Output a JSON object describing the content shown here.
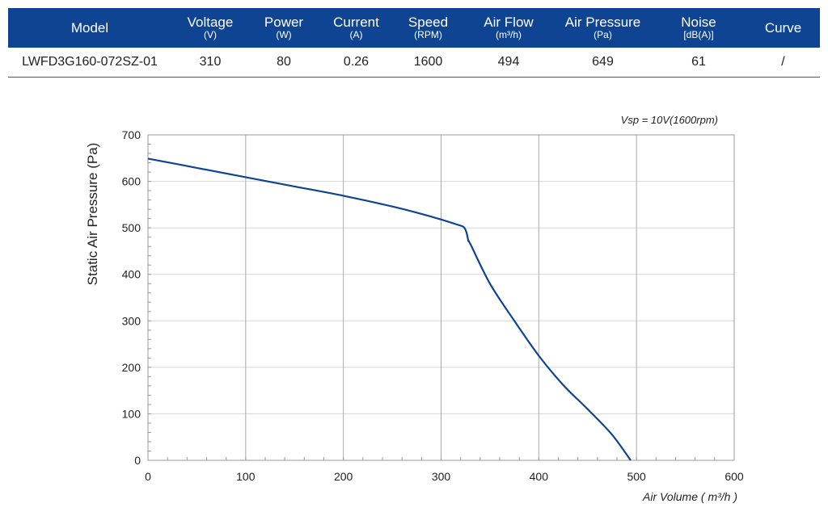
{
  "table": {
    "columns": [
      {
        "label": "Model",
        "unit": ""
      },
      {
        "label": "Voltage",
        "unit": "(V)"
      },
      {
        "label": "Power",
        "unit": "(W)"
      },
      {
        "label": "Current",
        "unit": "(A)"
      },
      {
        "label": "Speed",
        "unit": "(RPM)"
      },
      {
        "label": "Air Flow",
        "unit": "(m³/h)"
      },
      {
        "label": "Air Pressure",
        "unit": "(Pa)"
      },
      {
        "label": "Noise",
        "unit": "[dB(A)]"
      },
      {
        "label": "Curve",
        "unit": ""
      }
    ],
    "row": [
      "LWFD3G160-072SZ-01",
      "310",
      "80",
      "0.26",
      "1600",
      "494",
      "649",
      "61",
      "/"
    ],
    "header_color": "#0f4493"
  },
  "chart_data": {
    "type": "line",
    "annotation": "Vsp = 10V(1600rpm)",
    "xlabel": "Air Volume ( m³/h )",
    "ylabel": "Static Air Pressure  (Pa)",
    "xlim": [
      0,
      600
    ],
    "ylim": [
      0,
      700
    ],
    "xticks": [
      "0",
      "100",
      "200",
      "300",
      "400",
      "500",
      "600"
    ],
    "yticks": [
      "0",
      "100",
      "200",
      "300",
      "400",
      "500",
      "600",
      "700"
    ],
    "grid": true,
    "line_color": "#0f4493",
    "series": [
      {
        "x": [
          0,
          50,
          100,
          150,
          200,
          250,
          280,
          300,
          315,
          323,
          326,
          328,
          330,
          350,
          375,
          400,
          425,
          450,
          475,
          494
        ],
        "y": [
          649,
          629,
          609,
          589,
          569,
          546,
          530,
          518,
          508,
          502,
          490,
          472,
          465,
          380,
          300,
          225,
          162,
          110,
          55,
          0
        ]
      }
    ]
  }
}
